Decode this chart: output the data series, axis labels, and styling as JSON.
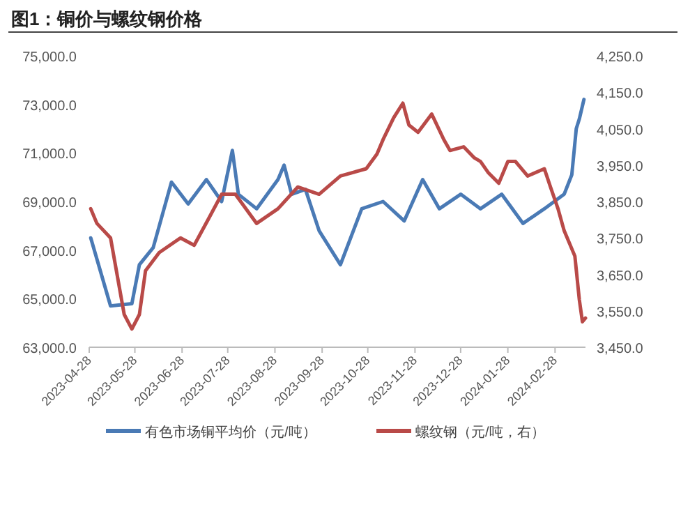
{
  "chart_data": {
    "type": "line",
    "title": "图1：铜价与螺纹钢价格",
    "legend": "bottom",
    "grid": false,
    "marker": "none",
    "line_style": "solid",
    "xlim": [
      "2023-04-28",
      "2024-03-19"
    ],
    "xticks": [
      "2023-04-28",
      "2023-05-28",
      "2023-06-28",
      "2023-07-28",
      "2023-08-28",
      "2023-09-28",
      "2023-10-28",
      "2023-11-28",
      "2023-12-28",
      "2024-01-28",
      "2024-02-28"
    ],
    "ylim": [
      63000,
      75000
    ],
    "yticks": [
      {
        "value": 63000,
        "label": "63,000.0"
      },
      {
        "value": 65000,
        "label": "65,000.0"
      },
      {
        "value": 67000,
        "label": "67,000.0"
      },
      {
        "value": 69000,
        "label": "69,000.0"
      },
      {
        "value": 71000,
        "label": "71,000.0"
      },
      {
        "value": 73000,
        "label": "73,000.0"
      },
      {
        "value": 75000,
        "label": "75,000.0"
      }
    ],
    "y2lim": [
      3450,
      4250
    ],
    "y2ticks": [
      {
        "value": 3450,
        "label": "3,450.0"
      },
      {
        "value": 3550,
        "label": "3,550.0"
      },
      {
        "value": 3650,
        "label": "3,650.0"
      },
      {
        "value": 3750,
        "label": "3,750.0"
      },
      {
        "value": 3850,
        "label": "3,850.0"
      },
      {
        "value": 3950,
        "label": "3,950.0"
      },
      {
        "value": 4050,
        "label": "4,050.0"
      },
      {
        "value": 4150,
        "label": "4,150.0"
      },
      {
        "value": 4250,
        "label": "4,250.0"
      }
    ],
    "series": [
      {
        "name": "有色市场铜平均价（元/吨）",
        "color": "#4a7ab5",
        "x": [
          "2023-04-29",
          "2023-05-12",
          "2023-05-26",
          "2023-05-31",
          "2023-06-09",
          "2023-06-21",
          "2023-07-02",
          "2023-07-14",
          "2023-07-24",
          "2023-07-31",
          "2023-08-04",
          "2023-08-16",
          "2023-08-30",
          "2023-09-03",
          "2023-09-08",
          "2023-09-17",
          "2023-09-26",
          "2023-10-10",
          "2023-10-24",
          "2023-11-07",
          "2023-11-21",
          "2023-12-03",
          "2023-12-14",
          "2023-12-28",
          "2024-01-10",
          "2024-01-24",
          "2024-02-07",
          "2024-02-21",
          "2024-03-05",
          "2024-03-10",
          "2024-03-13",
          "2024-03-15",
          "2024-03-18"
        ],
        "values": [
          67500,
          64700,
          64800,
          66400,
          67100,
          69800,
          68900,
          69900,
          69000,
          71100,
          69300,
          68700,
          69900,
          70500,
          69300,
          69500,
          67800,
          66400,
          68700,
          69000,
          68200,
          69900,
          68700,
          69300,
          68700,
          69300,
          68100,
          68700,
          69300,
          70100,
          72000,
          72400,
          73200
        ]
      },
      {
        "name": "螺纹钢（元/吨，右）",
        "color": "#b94a48",
        "axis": "y2",
        "x": [
          "2023-04-29",
          "2023-05-03",
          "2023-05-12",
          "2023-05-21",
          "2023-05-26",
          "2023-05-31",
          "2023-06-04",
          "2023-06-13",
          "2023-06-27",
          "2023-07-06",
          "2023-07-15",
          "2023-07-24",
          "2023-08-02",
          "2023-08-16",
          "2023-08-30",
          "2023-09-12",
          "2023-09-26",
          "2023-10-10",
          "2023-10-27",
          "2023-11-03",
          "2023-11-07",
          "2023-11-14",
          "2023-11-20",
          "2023-11-24",
          "2023-11-30",
          "2023-12-09",
          "2023-12-17",
          "2023-12-21",
          "2023-12-30",
          "2024-01-06",
          "2024-01-10",
          "2024-01-15",
          "2024-01-22",
          "2024-01-28",
          "2024-02-02",
          "2024-02-10",
          "2024-02-21",
          "2024-02-25",
          "2024-03-01",
          "2024-03-05",
          "2024-03-12",
          "2024-03-15",
          "2024-03-17",
          "2024-03-19"
        ],
        "values": [
          3830,
          3790,
          3750,
          3540,
          3500,
          3540,
          3660,
          3710,
          3750,
          3730,
          3800,
          3870,
          3870,
          3790,
          3830,
          3890,
          3870,
          3920,
          3940,
          3980,
          4020,
          4080,
          4120,
          4060,
          4040,
          4090,
          4020,
          3990,
          4000,
          3970,
          3960,
          3930,
          3900,
          3960,
          3960,
          3920,
          3940,
          3890,
          3830,
          3770,
          3700,
          3580,
          3520,
          3530
        ]
      }
    ]
  }
}
